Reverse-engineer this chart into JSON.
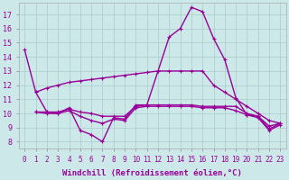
{
  "title": "",
  "xlabel": "Windchill (Refroidissement éolien,°C)",
  "background_color": "#cce8e8",
  "grid_color": "#aacccc",
  "line_color": "#990099",
  "x_ticks": [
    0,
    1,
    2,
    3,
    4,
    5,
    6,
    7,
    8,
    9,
    10,
    11,
    12,
    13,
    14,
    15,
    16,
    17,
    18,
    19,
    20,
    21,
    22,
    23
  ],
  "y_ticks": [
    8,
    9,
    10,
    11,
    12,
    13,
    14,
    15,
    16,
    17
  ],
  "ylim": [
    7.5,
    17.8
  ],
  "xlim": [
    -0.5,
    23.5
  ],
  "series": [
    {
      "x": [
        0,
        1,
        2,
        3,
        4,
        5,
        6,
        7,
        8,
        9,
        10,
        11,
        12,
        13,
        14,
        15,
        16,
        17,
        18,
        19,
        20,
        21,
        22,
        23
      ],
      "y": [
        14.5,
        11.5,
        10.1,
        10.0,
        10.4,
        8.8,
        8.5,
        8.0,
        9.7,
        9.6,
        10.6,
        10.6,
        13.0,
        15.4,
        16.0,
        17.5,
        17.2,
        15.3,
        13.8,
        11.1,
        9.9,
        9.8,
        9.1,
        9.3
      ]
    },
    {
      "x": [
        1,
        2,
        3,
        4,
        5,
        6,
        7,
        8,
        9,
        10,
        11,
        12,
        13,
        14,
        15,
        16,
        17,
        18,
        19,
        20,
        21,
        22,
        23
      ],
      "y": [
        11.5,
        11.8,
        12.0,
        12.2,
        12.3,
        12.4,
        12.5,
        12.6,
        12.7,
        12.8,
        12.9,
        13.0,
        13.0,
        13.0,
        13.0,
        13.0,
        12.0,
        11.5,
        11.0,
        10.5,
        10.0,
        9.5,
        9.3
      ]
    },
    {
      "x": [
        1,
        2,
        3,
        4,
        5,
        6,
        7,
        8,
        9,
        10,
        11,
        12,
        13,
        14,
        15,
        16,
        17,
        18,
        19,
        20,
        21,
        22,
        23
      ],
      "y": [
        10.1,
        10.1,
        10.1,
        10.3,
        10.1,
        10.0,
        9.8,
        9.8,
        9.8,
        10.5,
        10.6,
        10.6,
        10.6,
        10.6,
        10.6,
        10.5,
        10.5,
        10.5,
        10.5,
        10.0,
        9.8,
        8.9,
        9.3
      ]
    },
    {
      "x": [
        1,
        2,
        3,
        4,
        5,
        6,
        7,
        8,
        9,
        10,
        11,
        12,
        13,
        14,
        15,
        16,
        17,
        18,
        19,
        20,
        21,
        22,
        23
      ],
      "y": [
        10.1,
        10.0,
        10.0,
        10.2,
        9.8,
        9.5,
        9.3,
        9.6,
        9.5,
        10.4,
        10.5,
        10.5,
        10.5,
        10.5,
        10.5,
        10.4,
        10.4,
        10.4,
        10.2,
        9.9,
        9.7,
        8.8,
        9.2
      ]
    }
  ],
  "line_width": 1.0,
  "marker_size": 3,
  "font_size_ticks": 5.5,
  "font_size_xlabel": 6.5
}
